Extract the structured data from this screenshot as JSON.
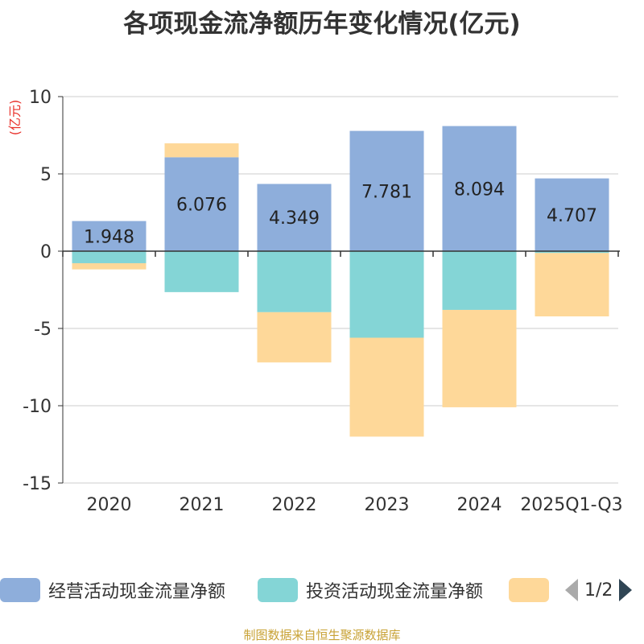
{
  "chart_data": {
    "type": "bar",
    "stacked": true,
    "title": "各项现金流净额历年变化情况(亿元)",
    "ylabel": "(亿元)",
    "xlabel": "",
    "ylim": [
      -15,
      10
    ],
    "yticks": [
      10,
      5,
      0,
      -5,
      -10,
      -15
    ],
    "grid": true,
    "categories": [
      "2020",
      "2021",
      "2022",
      "2023",
      "2024",
      "2025Q1-Q3"
    ],
    "series": [
      {
        "name": "经营活动现金流量净额",
        "color": "#8eaedb",
        "values": [
          1.948,
          6.076,
          4.349,
          7.781,
          8.094,
          4.707
        ],
        "show_labels": true
      },
      {
        "name": "投资活动现金流量净额",
        "color": "#84d5d6",
        "values": [
          -0.78,
          -2.65,
          -3.95,
          -5.6,
          -3.8,
          -0.12
        ],
        "show_labels": false
      },
      {
        "name": "",
        "color": "#fed899",
        "values": [
          -0.4,
          0.9,
          -3.25,
          -6.4,
          -6.3,
          -4.1
        ],
        "show_labels": false
      }
    ]
  },
  "legend": {
    "items": [
      {
        "label": "经营活动现金流量净额",
        "color": "#8eaedb"
      },
      {
        "label": "投资活动现金流量净额",
        "color": "#84d5d6"
      },
      {
        "label": "",
        "color": "#fed899"
      }
    ],
    "pager": "1/2"
  },
  "source": "制图数据来自恒生聚源数据库"
}
